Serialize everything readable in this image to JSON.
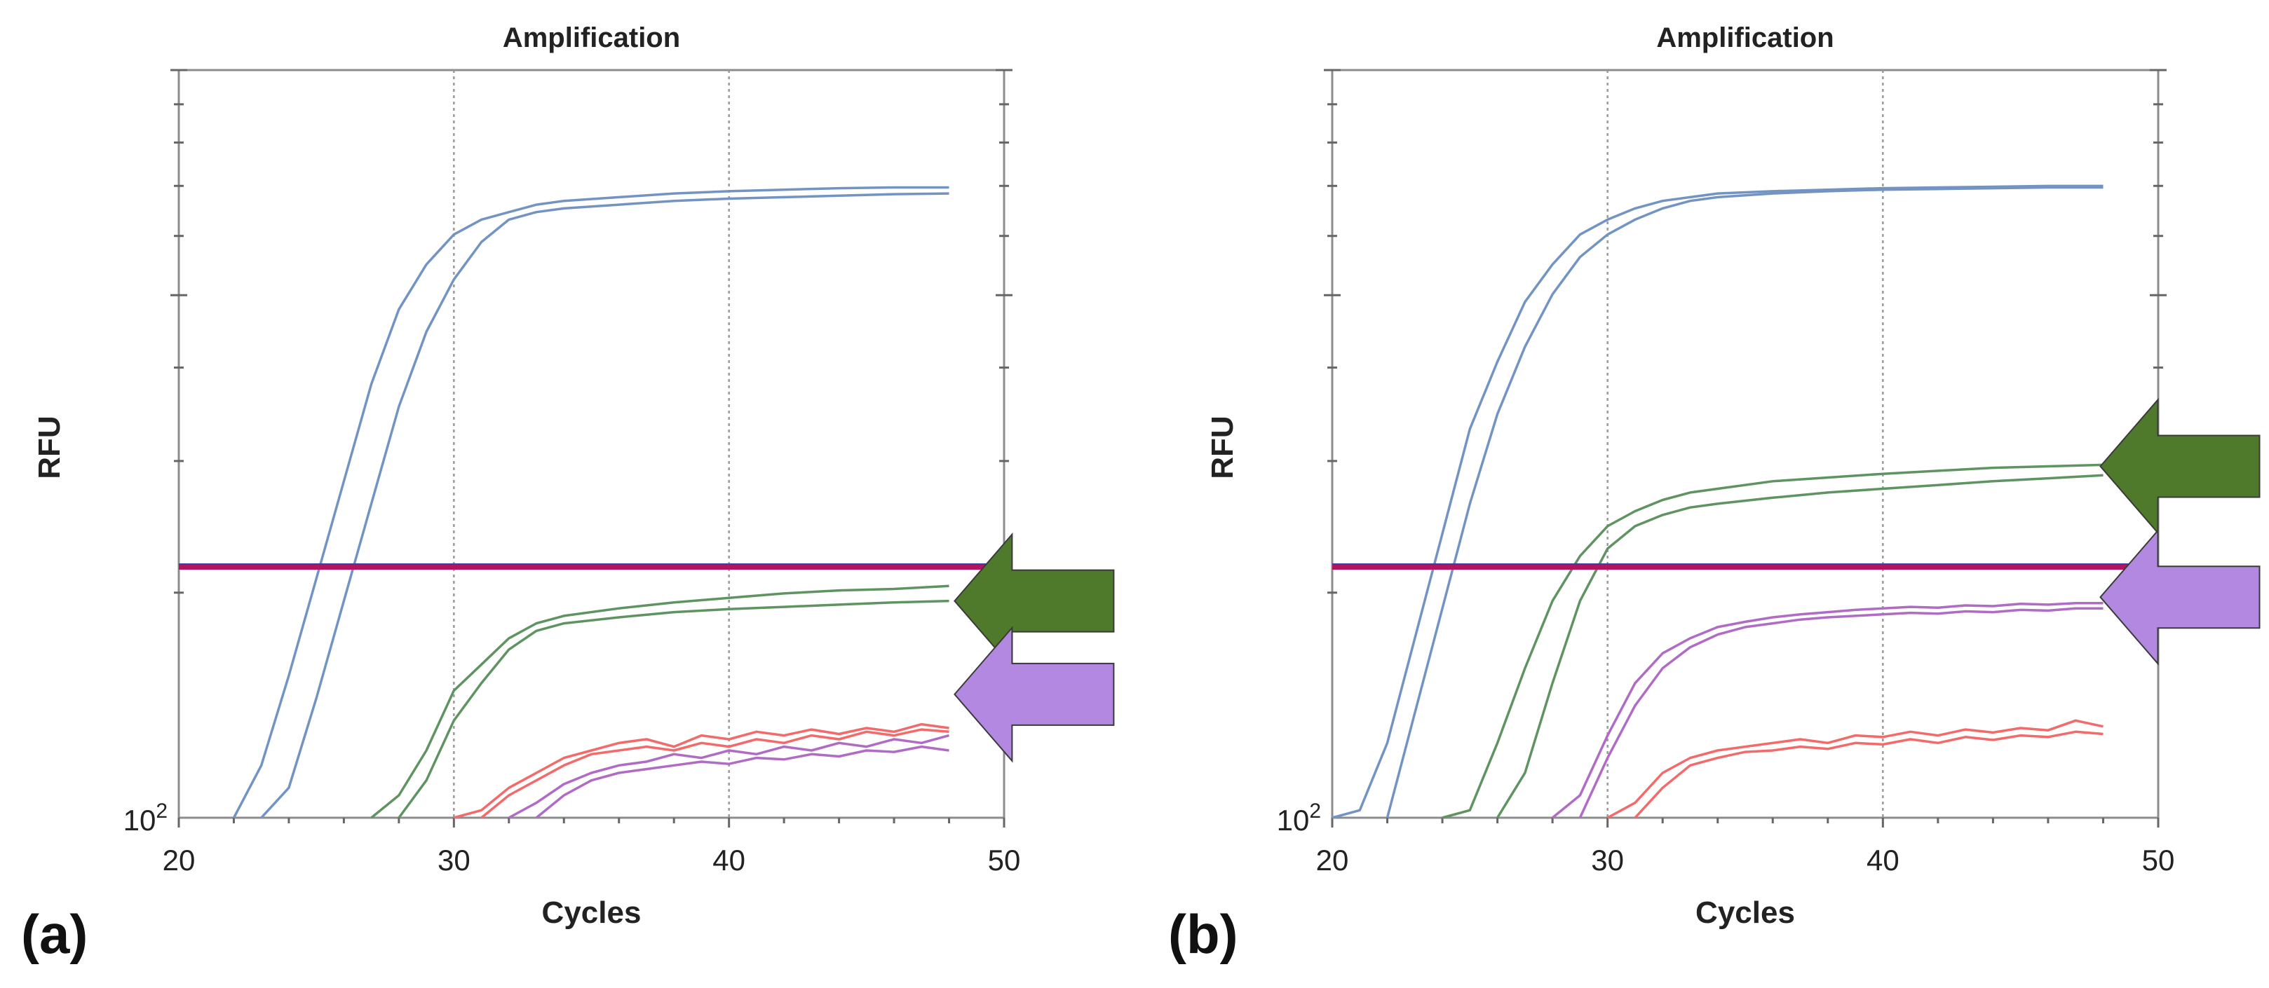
{
  "colors": {
    "ctrl": "#7394c2",
    "green": "#5f9462",
    "purple": "#b06cc4",
    "red": "#f26a6a",
    "threshold": "#b21460",
    "threshold_edge": "#3a3f9e",
    "arrow_green": "#4f7a2b",
    "arrow_purple": "#b388e0",
    "grid": "#9a9a9a"
  },
  "chart_data": [
    {
      "panel_label": "(a)",
      "type": "line",
      "title": "Amplification",
      "xlabel": "Cycles",
      "ylabel": "RFU",
      "xlim": [
        20,
        50
      ],
      "ylim_log10": [
        2.0,
        3.0
      ],
      "xticks": [
        "20",
        "30",
        "40",
        "50"
      ],
      "ytick_base": "10",
      "ytick_exp": "2",
      "threshold_log10": 2.335,
      "arrows": [
        {
          "color": "arrow_green",
          "x": 48.2,
          "y": 2.29
        },
        {
          "color": "arrow_purple",
          "x": 48.2,
          "y": 2.165
        }
      ],
      "series": [
        {
          "name": "control-1",
          "color": "ctrl",
          "x": [
            22,
            23,
            24,
            25,
            26,
            27,
            28,
            29,
            30,
            31,
            32,
            33,
            34,
            36,
            38,
            40,
            42,
            44,
            46,
            48
          ],
          "y": [
            2.0,
            2.07,
            2.19,
            2.32,
            2.45,
            2.58,
            2.68,
            2.74,
            2.78,
            2.8,
            2.81,
            2.82,
            2.825,
            2.83,
            2.835,
            2.838,
            2.84,
            2.842,
            2.843,
            2.843
          ]
        },
        {
          "name": "control-2",
          "color": "ctrl",
          "x": [
            23,
            24,
            25,
            26,
            27,
            28,
            29,
            30,
            31,
            32,
            33,
            34,
            36,
            38,
            40,
            42,
            44,
            46,
            48
          ],
          "y": [
            2.0,
            2.04,
            2.16,
            2.29,
            2.42,
            2.55,
            2.65,
            2.72,
            2.77,
            2.8,
            2.81,
            2.815,
            2.82,
            2.825,
            2.828,
            2.83,
            2.832,
            2.834,
            2.835
          ]
        },
        {
          "name": "target-green-1",
          "color": "green",
          "x": [
            27,
            28,
            29,
            30,
            31,
            32,
            33,
            34,
            36,
            38,
            40,
            42,
            44,
            46,
            48
          ],
          "y": [
            2.0,
            2.03,
            2.09,
            2.17,
            2.205,
            2.24,
            2.26,
            2.27,
            2.28,
            2.288,
            2.294,
            2.3,
            2.304,
            2.306,
            2.31
          ]
        },
        {
          "name": "target-green-2",
          "color": "green",
          "x": [
            28,
            29,
            30,
            31,
            32,
            33,
            34,
            36,
            38,
            40,
            42,
            44,
            46,
            48
          ],
          "y": [
            2.0,
            2.05,
            2.13,
            2.18,
            2.225,
            2.25,
            2.26,
            2.268,
            2.275,
            2.279,
            2.282,
            2.285,
            2.288,
            2.29
          ]
        },
        {
          "name": "target-red-1",
          "color": "red",
          "x": [
            30,
            31,
            32,
            33,
            34,
            35,
            36,
            37,
            38,
            39,
            40,
            41,
            42,
            43,
            44,
            45,
            46,
            47,
            48
          ],
          "y": [
            2.0,
            2.01,
            2.04,
            2.06,
            2.08,
            2.09,
            2.1,
            2.105,
            2.095,
            2.11,
            2.105,
            2.115,
            2.11,
            2.118,
            2.112,
            2.12,
            2.115,
            2.125,
            2.12
          ]
        },
        {
          "name": "target-red-2",
          "color": "red",
          "x": [
            31,
            32,
            33,
            34,
            35,
            36,
            37,
            38,
            39,
            40,
            41,
            42,
            43,
            44,
            45,
            46,
            47,
            48
          ],
          "y": [
            2.0,
            2.03,
            2.05,
            2.07,
            2.085,
            2.09,
            2.095,
            2.09,
            2.1,
            2.095,
            2.105,
            2.1,
            2.11,
            2.105,
            2.115,
            2.11,
            2.118,
            2.115
          ]
        },
        {
          "name": "target-purple-1",
          "color": "purple",
          "x": [
            32,
            33,
            34,
            35,
            36,
            37,
            38,
            39,
            40,
            41,
            42,
            43,
            44,
            45,
            46,
            47,
            48
          ],
          "y": [
            2.0,
            2.02,
            2.045,
            2.06,
            2.07,
            2.075,
            2.085,
            2.08,
            2.09,
            2.085,
            2.095,
            2.09,
            2.1,
            2.095,
            2.105,
            2.1,
            2.11
          ]
        },
        {
          "name": "target-purple-2",
          "color": "purple",
          "x": [
            33,
            34,
            35,
            36,
            37,
            38,
            39,
            40,
            41,
            42,
            43,
            44,
            45,
            46,
            47,
            48
          ],
          "y": [
            2.0,
            2.03,
            2.05,
            2.06,
            2.065,
            2.07,
            2.075,
            2.072,
            2.08,
            2.078,
            2.085,
            2.082,
            2.09,
            2.088,
            2.095,
            2.09
          ]
        }
      ]
    },
    {
      "panel_label": "(b)",
      "type": "line",
      "title": "Amplification",
      "xlabel": "Cycles",
      "ylabel": "RFU",
      "xlim": [
        20,
        50
      ],
      "ylim_log10": [
        2.0,
        3.0
      ],
      "xticks": [
        "20",
        "30",
        "40",
        "50"
      ],
      "ytick_base": "10",
      "ytick_exp": "2",
      "threshold_log10": 2.335,
      "arrows": [
        {
          "color": "arrow_green",
          "x": 47.9,
          "y": 2.47
        },
        {
          "color": "arrow_purple",
          "x": 47.9,
          "y": 2.295
        }
      ],
      "series": [
        {
          "name": "control-1",
          "color": "ctrl",
          "x": [
            20,
            21,
            22,
            23,
            24,
            25,
            26,
            27,
            28,
            29,
            30,
            31,
            32,
            33,
            34,
            36,
            38,
            40,
            42,
            44,
            46,
            48
          ],
          "y": [
            2.0,
            2.01,
            2.1,
            2.24,
            2.38,
            2.52,
            2.61,
            2.69,
            2.74,
            2.78,
            2.8,
            2.815,
            2.825,
            2.83,
            2.835,
            2.838,
            2.84,
            2.842,
            2.843,
            2.844,
            2.845,
            2.845
          ]
        },
        {
          "name": "control-2",
          "color": "ctrl",
          "x": [
            22,
            23,
            24,
            25,
            26,
            27,
            28,
            29,
            30,
            31,
            32,
            33,
            34,
            36,
            38,
            40,
            42,
            44,
            46,
            48
          ],
          "y": [
            2.0,
            2.14,
            2.28,
            2.42,
            2.54,
            2.63,
            2.7,
            2.75,
            2.78,
            2.8,
            2.815,
            2.825,
            2.83,
            2.835,
            2.838,
            2.84,
            2.841,
            2.842,
            2.843,
            2.843
          ]
        },
        {
          "name": "target-green-1",
          "color": "green",
          "x": [
            24,
            25,
            26,
            27,
            28,
            29,
            30,
            31,
            32,
            33,
            34,
            36,
            38,
            40,
            42,
            44,
            46,
            48
          ],
          "y": [
            2.0,
            2.01,
            2.1,
            2.2,
            2.29,
            2.35,
            2.39,
            2.41,
            2.425,
            2.435,
            2.44,
            2.45,
            2.455,
            2.46,
            2.464,
            2.468,
            2.47,
            2.472
          ]
        },
        {
          "name": "target-green-2",
          "color": "green",
          "x": [
            26,
            27,
            28,
            29,
            30,
            31,
            32,
            33,
            34,
            36,
            38,
            40,
            42,
            44,
            46,
            48
          ],
          "y": [
            2.0,
            2.06,
            2.18,
            2.29,
            2.36,
            2.39,
            2.405,
            2.415,
            2.42,
            2.428,
            2.435,
            2.44,
            2.445,
            2.45,
            2.454,
            2.458
          ]
        },
        {
          "name": "target-purple-1",
          "color": "purple",
          "x": [
            28,
            29,
            30,
            31,
            32,
            33,
            34,
            35,
            36,
            37,
            38,
            39,
            40,
            41,
            42,
            43,
            44,
            45,
            46,
            47,
            48
          ],
          "y": [
            2.0,
            2.03,
            2.11,
            2.18,
            2.22,
            2.24,
            2.255,
            2.262,
            2.268,
            2.272,
            2.275,
            2.278,
            2.28,
            2.282,
            2.281,
            2.284,
            2.283,
            2.286,
            2.285,
            2.287,
            2.287
          ]
        },
        {
          "name": "target-purple-2",
          "color": "purple",
          "x": [
            29,
            30,
            31,
            32,
            33,
            34,
            35,
            36,
            37,
            38,
            39,
            40,
            41,
            42,
            43,
            44,
            45,
            46,
            47,
            48
          ],
          "y": [
            2.0,
            2.08,
            2.15,
            2.2,
            2.228,
            2.245,
            2.255,
            2.26,
            2.265,
            2.268,
            2.27,
            2.272,
            2.274,
            2.273,
            2.276,
            2.275,
            2.278,
            2.277,
            2.28,
            2.28
          ]
        },
        {
          "name": "target-red-1",
          "color": "red",
          "x": [
            30,
            31,
            32,
            33,
            34,
            35,
            36,
            37,
            38,
            39,
            40,
            41,
            42,
            43,
            44,
            45,
            46,
            47,
            48
          ],
          "y": [
            2.0,
            2.02,
            2.06,
            2.08,
            2.09,
            2.095,
            2.1,
            2.105,
            2.1,
            2.11,
            2.108,
            2.115,
            2.11,
            2.118,
            2.114,
            2.12,
            2.117,
            2.13,
            2.122
          ]
        },
        {
          "name": "target-red-2",
          "color": "red",
          "x": [
            31,
            32,
            33,
            34,
            35,
            36,
            37,
            38,
            39,
            40,
            41,
            42,
            43,
            44,
            45,
            46,
            47,
            48
          ],
          "y": [
            2.0,
            2.04,
            2.07,
            2.08,
            2.088,
            2.09,
            2.095,
            2.092,
            2.1,
            2.098,
            2.105,
            2.1,
            2.108,
            2.104,
            2.11,
            2.108,
            2.115,
            2.112
          ]
        }
      ]
    }
  ]
}
